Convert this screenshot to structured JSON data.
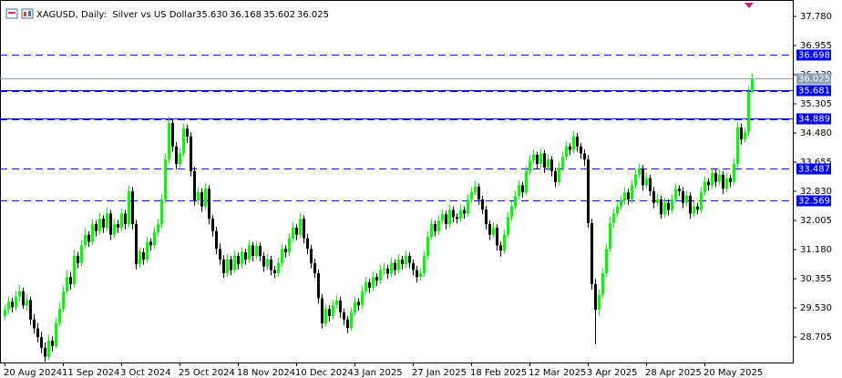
{
  "chart_data": {
    "type": "candlestick",
    "title": "XAGUSD, Daily:  Silver vs US Dollar",
    "ohlc_labels": [
      "35.630",
      "36.168",
      "35.602",
      "36.025"
    ],
    "up_color": "#00ff00",
    "down_color": "#000000",
    "level_color": "#0000ff",
    "last_color": "#8c9fb4",
    "ylim": [
      27.983,
      38.244
    ],
    "yticks": [
      {
        "value": 37.78,
        "label": "37.780"
      },
      36.955,
      {
        "value": 36.13,
        "label": "36.130"
      },
      35.305,
      {
        "value": 34.48,
        "label": "34.480"
      },
      33.655,
      {
        "value": 32.83,
        "label": "32.830"
      },
      32.005,
      {
        "value": 31.18,
        "label": "31.180"
      },
      30.355,
      {
        "value": 29.53,
        "label": "29.530"
      },
      28.705
    ],
    "levels": [
      36.698,
      35.681,
      34.889,
      33.487,
      32.569
    ],
    "level_solid": [
      false,
      true,
      true,
      false,
      false
    ],
    "categories": [
      "20 Aug 2024",
      null,
      null,
      null,
      null,
      null,
      null,
      null,
      null,
      null,
      null,
      null,
      null,
      null,
      null,
      null,
      "11 Sep 2024",
      null,
      null,
      null,
      null,
      null,
      null,
      null,
      null,
      null,
      null,
      null,
      null,
      null,
      null,
      null,
      "3 Oct 2024",
      null,
      null,
      null,
      null,
      null,
      null,
      null,
      null,
      null,
      null,
      null,
      null,
      null,
      null,
      null,
      "25 Oct 2024",
      null,
      null,
      null,
      null,
      null,
      null,
      null,
      null,
      null,
      null,
      null,
      null,
      null,
      null,
      null,
      "18 Nov 2024",
      null,
      null,
      null,
      null,
      null,
      null,
      null,
      null,
      null,
      null,
      null,
      null,
      null,
      null,
      null,
      "10 Dec 2024",
      null,
      null,
      null,
      null,
      null,
      null,
      null,
      null,
      null,
      null,
      null,
      null,
      null,
      null,
      null,
      "3 Jan 2025",
      null,
      null,
      null,
      null,
      null,
      null,
      null,
      null,
      null,
      null,
      null,
      null,
      null,
      null,
      null,
      "27 Jan 2025",
      null,
      null,
      null,
      null,
      null,
      null,
      null,
      null,
      null,
      null,
      null,
      null,
      null,
      null,
      null,
      "18 Feb 2025",
      null,
      null,
      null,
      null,
      null,
      null,
      null,
      null,
      null,
      null,
      null,
      null,
      null,
      null,
      null,
      "12 Mar 2025",
      null,
      null,
      null,
      null,
      null,
      null,
      null,
      null,
      null,
      null,
      null,
      null,
      null,
      null,
      null,
      "3 Apr 2025",
      null,
      null,
      null,
      null,
      null,
      null,
      null,
      null,
      null,
      null,
      null,
      null,
      null,
      null,
      null,
      "28 Apr 2025",
      null,
      null,
      null,
      null,
      null,
      null,
      null,
      null,
      null,
      null,
      null,
      null,
      null,
      null,
      null,
      "20 May 2025",
      null,
      null,
      null,
      null,
      null,
      null,
      null,
      null,
      null,
      null,
      null,
      null,
      null
    ],
    "ohlc": [
      [
        29.3,
        29.62,
        29.18,
        29.48
      ],
      [
        29.48,
        29.85,
        29.35,
        29.7
      ],
      [
        29.7,
        29.82,
        29.4,
        29.55
      ],
      [
        29.55,
        30.02,
        29.45,
        29.85
      ],
      [
        29.85,
        30.18,
        29.7,
        30.0
      ],
      [
        30.0,
        30.1,
        29.5,
        29.6
      ],
      [
        29.6,
        29.92,
        29.45,
        29.75
      ],
      [
        29.75,
        29.85,
        29.05,
        29.2
      ],
      [
        29.2,
        29.35,
        28.8,
        28.95
      ],
      [
        28.95,
        29.1,
        28.55,
        28.7
      ],
      [
        28.7,
        28.85,
        28.25,
        28.4
      ],
      [
        28.4,
        28.55,
        28.0,
        28.15
      ],
      [
        28.15,
        28.78,
        28.05,
        28.6
      ],
      [
        28.6,
        28.72,
        28.3,
        28.45
      ],
      [
        28.45,
        29.25,
        28.4,
        29.1
      ],
      [
        29.1,
        29.68,
        29.0,
        29.5
      ],
      [
        29.5,
        30.15,
        29.4,
        30.0
      ],
      [
        30.0,
        30.6,
        29.9,
        30.4
      ],
      [
        30.4,
        30.55,
        30.05,
        30.2
      ],
      [
        30.2,
        31.18,
        30.1,
        31.0
      ],
      [
        31.0,
        31.12,
        30.65,
        30.8
      ],
      [
        30.8,
        31.45,
        30.7,
        31.3
      ],
      [
        31.3,
        31.78,
        31.2,
        31.6
      ],
      [
        31.6,
        31.7,
        31.25,
        31.4
      ],
      [
        31.4,
        32.05,
        31.3,
        31.9
      ],
      [
        31.9,
        32.0,
        31.55,
        31.7
      ],
      [
        31.7,
        32.22,
        31.6,
        32.05
      ],
      [
        32.05,
        32.15,
        31.65,
        31.8
      ],
      [
        31.8,
        32.38,
        31.7,
        32.2
      ],
      [
        32.2,
        32.3,
        31.45,
        31.6
      ],
      [
        31.6,
        32.05,
        31.5,
        31.9
      ],
      [
        31.9,
        32.02,
        31.65,
        31.8
      ],
      [
        31.8,
        32.35,
        31.7,
        32.2
      ],
      [
        32.2,
        32.3,
        31.75,
        31.9
      ],
      [
        31.9,
        33.0,
        31.8,
        32.83
      ],
      [
        32.83,
        32.95,
        31.75,
        31.9
      ],
      [
        31.9,
        32.02,
        30.62,
        30.77
      ],
      [
        30.77,
        31.25,
        30.65,
        31.1
      ],
      [
        31.1,
        31.22,
        30.75,
        30.9
      ],
      [
        30.9,
        31.55,
        30.8,
        31.4
      ],
      [
        31.4,
        31.5,
        31.15,
        31.3
      ],
      [
        31.3,
        31.82,
        31.2,
        31.67
      ],
      [
        31.67,
        32.05,
        31.55,
        31.9
      ],
      [
        31.9,
        32.75,
        31.8,
        32.6
      ],
      [
        32.6,
        33.9,
        32.5,
        33.73
      ],
      [
        33.73,
        34.95,
        33.6,
        34.76
      ],
      [
        34.76,
        34.88,
        33.95,
        34.1
      ],
      [
        34.1,
        34.22,
        33.45,
        33.6
      ],
      [
        33.6,
        34.05,
        33.5,
        33.9
      ],
      [
        33.9,
        34.75,
        33.8,
        34.6
      ],
      [
        34.6,
        34.72,
        34.2,
        34.38
      ],
      [
        34.38,
        34.5,
        33.25,
        33.4
      ],
      [
        33.4,
        33.52,
        32.42,
        32.57
      ],
      [
        32.57,
        32.95,
        32.45,
        32.8
      ],
      [
        32.8,
        32.92,
        32.25,
        32.4
      ],
      [
        32.4,
        33.05,
        32.3,
        32.9
      ],
      [
        32.9,
        33.0,
        31.9,
        32.05
      ],
      [
        32.05,
        32.15,
        31.55,
        31.7
      ],
      [
        31.7,
        31.82,
        31.05,
        31.2
      ],
      [
        31.2,
        31.35,
        30.75,
        30.9
      ],
      [
        30.9,
        31.02,
        30.38,
        30.51
      ],
      [
        30.51,
        31.05,
        30.4,
        30.9
      ],
      [
        30.9,
        31.0,
        30.45,
        30.6
      ],
      [
        30.6,
        31.15,
        30.5,
        31.0
      ],
      [
        31.0,
        31.1,
        30.62,
        30.77
      ],
      [
        30.77,
        31.25,
        30.65,
        31.1
      ],
      [
        31.1,
        31.2,
        30.75,
        30.9
      ],
      [
        30.9,
        31.45,
        30.8,
        31.3
      ],
      [
        31.3,
        31.4,
        30.85,
        31.0
      ],
      [
        31.0,
        31.42,
        30.9,
        31.28
      ],
      [
        31.28,
        31.38,
        30.85,
        31.0
      ],
      [
        31.0,
        31.1,
        30.55,
        30.7
      ],
      [
        30.7,
        31.05,
        30.6,
        30.9
      ],
      [
        30.9,
        31.0,
        30.45,
        30.6
      ],
      [
        30.6,
        30.72,
        30.38,
        30.51
      ],
      [
        30.51,
        30.95,
        30.4,
        30.8
      ],
      [
        30.8,
        31.35,
        30.7,
        31.2
      ],
      [
        31.2,
        31.3,
        30.95,
        31.1
      ],
      [
        31.1,
        31.65,
        31.0,
        31.5
      ],
      [
        31.5,
        31.95,
        31.4,
        31.8
      ],
      [
        31.8,
        31.9,
        31.45,
        31.6
      ],
      [
        31.6,
        32.2,
        31.5,
        32.05
      ],
      [
        32.05,
        32.15,
        31.35,
        31.5
      ],
      [
        31.5,
        31.62,
        31.05,
        31.2
      ],
      [
        31.2,
        31.32,
        30.65,
        30.8
      ],
      [
        30.8,
        30.92,
        30.38,
        30.51
      ],
      [
        30.51,
        30.62,
        29.65,
        29.8
      ],
      [
        29.8,
        29.92,
        28.95,
        29.09
      ],
      [
        29.09,
        29.65,
        29.0,
        29.5
      ],
      [
        29.5,
        29.6,
        29.15,
        29.3
      ],
      [
        29.3,
        29.75,
        29.2,
        29.6
      ],
      [
        29.6,
        29.88,
        29.5,
        29.74
      ],
      [
        29.74,
        29.85,
        29.25,
        29.4
      ],
      [
        29.4,
        29.5,
        29.05,
        29.2
      ],
      [
        29.2,
        29.3,
        28.82,
        28.96
      ],
      [
        28.96,
        29.55,
        28.88,
        29.4
      ],
      [
        29.4,
        29.85,
        29.3,
        29.7
      ],
      [
        29.7,
        29.8,
        29.45,
        29.6
      ],
      [
        29.6,
        30.15,
        29.5,
        30.0
      ],
      [
        30.0,
        30.4,
        29.9,
        30.25
      ],
      [
        30.25,
        30.35,
        29.95,
        30.1
      ],
      [
        30.1,
        30.55,
        30.0,
        30.4
      ],
      [
        30.4,
        30.5,
        30.15,
        30.3
      ],
      [
        30.3,
        30.75,
        30.2,
        30.6
      ],
      [
        30.6,
        30.78,
        30.45,
        30.64
      ],
      [
        30.64,
        30.75,
        30.35,
        30.5
      ],
      [
        30.5,
        30.95,
        30.4,
        30.8
      ],
      [
        30.8,
        30.9,
        30.45,
        30.6
      ],
      [
        30.6,
        31.05,
        30.5,
        30.9
      ],
      [
        30.9,
        31.0,
        30.62,
        30.77
      ],
      [
        30.77,
        31.15,
        30.65,
        31.0
      ],
      [
        31.0,
        31.1,
        30.65,
        30.8
      ],
      [
        30.8,
        30.9,
        30.45,
        30.6
      ],
      [
        30.6,
        30.72,
        30.25,
        30.4
      ],
      [
        30.4,
        30.65,
        30.3,
        30.51
      ],
      [
        30.51,
        31.15,
        30.4,
        31.0
      ],
      [
        31.0,
        31.7,
        30.9,
        31.54
      ],
      [
        31.54,
        32.05,
        31.45,
        31.9
      ],
      [
        31.9,
        32.0,
        31.55,
        31.7
      ],
      [
        31.7,
        32.15,
        31.6,
        32.0
      ],
      [
        32.0,
        32.32,
        31.9,
        32.18
      ],
      [
        32.18,
        32.28,
        31.75,
        31.9
      ],
      [
        31.9,
        32.45,
        31.8,
        32.3
      ],
      [
        32.3,
        32.4,
        31.95,
        32.1
      ],
      [
        32.1,
        32.2,
        31.92,
        32.05
      ],
      [
        32.05,
        32.45,
        31.95,
        32.3
      ],
      [
        32.3,
        32.4,
        32.05,
        32.2
      ],
      [
        32.2,
        32.75,
        32.1,
        32.6
      ],
      [
        32.6,
        32.95,
        32.5,
        32.8
      ],
      [
        32.8,
        33.12,
        32.7,
        32.96
      ],
      [
        32.96,
        33.05,
        32.45,
        32.6
      ],
      [
        32.6,
        32.7,
        32.18,
        32.31
      ],
      [
        32.31,
        32.42,
        31.75,
        31.9
      ],
      [
        31.9,
        32.0,
        31.45,
        31.6
      ],
      [
        31.6,
        31.95,
        31.5,
        31.8
      ],
      [
        31.8,
        31.9,
        31.15,
        31.3
      ],
      [
        31.3,
        31.4,
        30.98,
        31.15
      ],
      [
        31.15,
        31.75,
        31.05,
        31.6
      ],
      [
        31.6,
        32.25,
        31.5,
        32.1
      ],
      [
        32.1,
        32.55,
        32.0,
        32.4
      ],
      [
        32.4,
        32.85,
        32.3,
        32.7
      ],
      [
        32.7,
        33.15,
        32.6,
        33.0
      ],
      [
        33.0,
        33.1,
        32.65,
        32.8
      ],
      [
        32.8,
        33.55,
        32.7,
        33.4
      ],
      [
        33.4,
        33.85,
        33.3,
        33.7
      ],
      [
        33.7,
        34.02,
        33.6,
        33.86
      ],
      [
        33.86,
        33.95,
        33.45,
        33.6
      ],
      [
        33.6,
        34.05,
        33.5,
        33.9
      ],
      [
        33.9,
        34.0,
        33.35,
        33.5
      ],
      [
        33.5,
        33.88,
        33.4,
        33.73
      ],
      [
        33.73,
        33.82,
        33.25,
        33.4
      ],
      [
        33.4,
        33.5,
        32.95,
        33.09
      ],
      [
        33.09,
        33.65,
        33.0,
        33.5
      ],
      [
        33.5,
        33.95,
        33.4,
        33.8
      ],
      [
        33.8,
        34.25,
        33.7,
        34.1
      ],
      [
        34.1,
        34.2,
        33.85,
        34.0
      ],
      [
        34.0,
        34.55,
        33.9,
        34.38
      ],
      [
        34.38,
        34.48,
        33.95,
        34.1
      ],
      [
        34.1,
        34.2,
        33.75,
        33.9
      ],
      [
        33.9,
        34.02,
        33.55,
        33.73
      ],
      [
        33.73,
        33.85,
        31.8,
        31.93
      ],
      [
        31.93,
        32.05,
        30.05,
        30.2
      ],
      [
        30.2,
        30.35,
        28.5,
        29.48
      ],
      [
        29.48,
        30.05,
        29.3,
        29.9
      ],
      [
        29.9,
        30.65,
        29.8,
        30.51
      ],
      [
        30.51,
        31.35,
        30.4,
        31.2
      ],
      [
        31.2,
        32.1,
        31.1,
        31.93
      ],
      [
        31.93,
        32.35,
        31.8,
        32.2
      ],
      [
        32.2,
        32.55,
        32.1,
        32.4
      ],
      [
        32.4,
        32.72,
        32.3,
        32.57
      ],
      [
        32.57,
        32.95,
        32.45,
        32.8
      ],
      [
        32.8,
        32.9,
        32.45,
        32.6
      ],
      [
        32.6,
        33.15,
        32.5,
        33.0
      ],
      [
        33.0,
        33.45,
        32.9,
        33.3
      ],
      [
        33.3,
        33.62,
        33.2,
        33.47
      ],
      [
        33.47,
        33.58,
        32.85,
        33.0
      ],
      [
        33.0,
        33.35,
        32.9,
        33.2
      ],
      [
        33.2,
        33.3,
        32.7,
        32.83
      ],
      [
        32.83,
        32.95,
        32.35,
        32.5
      ],
      [
        32.5,
        32.75,
        32.4,
        32.6
      ],
      [
        32.6,
        32.7,
        32.05,
        32.18
      ],
      [
        32.18,
        32.65,
        32.08,
        32.5
      ],
      [
        32.5,
        32.6,
        32.15,
        32.3
      ],
      [
        32.3,
        32.75,
        32.2,
        32.6
      ],
      [
        32.6,
        33.05,
        32.5,
        32.9
      ],
      [
        32.9,
        33.0,
        32.7,
        32.83
      ],
      [
        32.83,
        32.95,
        32.35,
        32.5
      ],
      [
        32.5,
        32.85,
        32.4,
        32.7
      ],
      [
        32.7,
        32.8,
        32.05,
        32.2
      ],
      [
        32.2,
        32.55,
        32.1,
        32.4
      ],
      [
        32.4,
        32.5,
        32.18,
        32.31
      ],
      [
        32.31,
        32.95,
        32.2,
        32.8
      ],
      [
        32.8,
        33.25,
        32.7,
        33.1
      ],
      [
        33.1,
        33.2,
        32.85,
        33.0
      ],
      [
        33.0,
        33.5,
        32.9,
        33.34
      ],
      [
        33.34,
        33.45,
        32.95,
        33.1
      ],
      [
        33.1,
        33.45,
        33.0,
        33.3
      ],
      [
        33.3,
        33.4,
        32.75,
        32.9
      ],
      [
        32.9,
        33.35,
        32.8,
        33.2
      ],
      [
        33.2,
        33.3,
        32.95,
        33.09
      ],
      [
        33.09,
        33.75,
        33.0,
        33.6
      ],
      [
        33.6,
        34.8,
        33.5,
        34.63
      ],
      [
        34.63,
        34.75,
        34.15,
        34.3
      ],
      [
        34.3,
        34.65,
        34.2,
        34.5
      ],
      [
        34.5,
        35.8,
        34.4,
        35.63
      ],
      [
        35.63,
        36.168,
        35.602,
        36.025
      ]
    ]
  }
}
